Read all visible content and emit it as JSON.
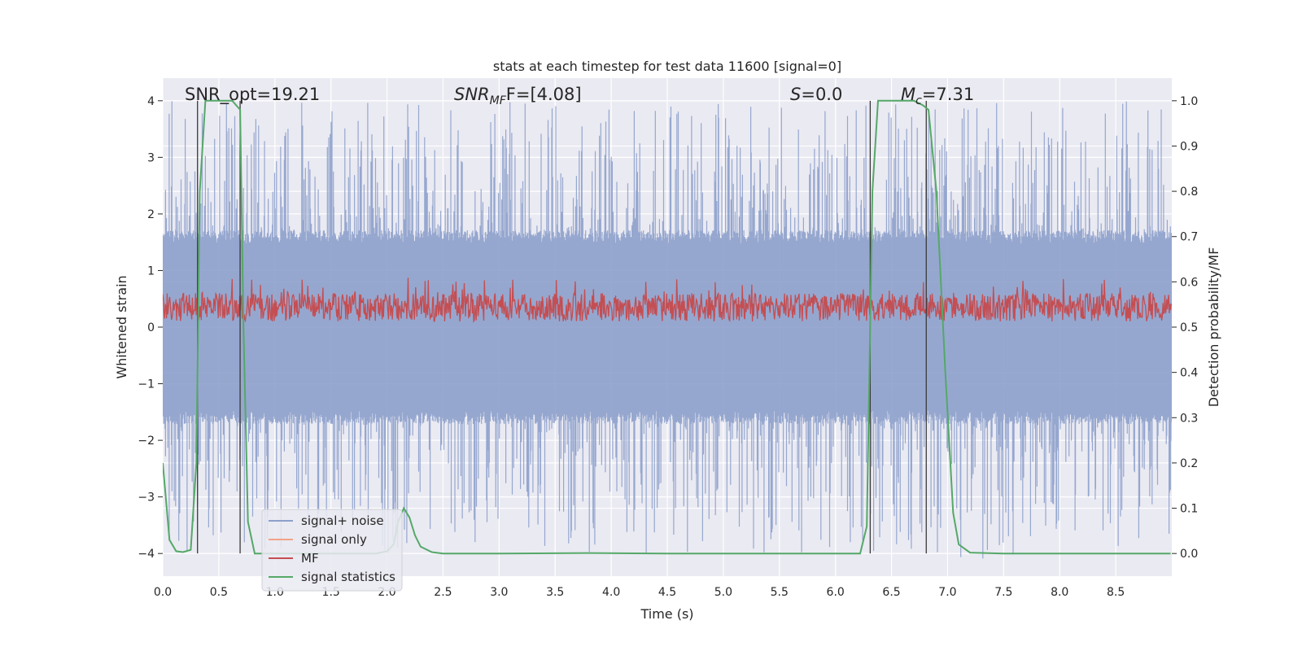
{
  "chart_data": {
    "type": "line",
    "title": "stats at each timestep for test data 11600 [signal=0]",
    "xlabel": "Time (s)",
    "ylabel": "Whitened strain",
    "ylabel_right": "Detection probability/MF",
    "xlim": [
      0,
      9.0
    ],
    "ylim": [
      -4.4,
      4.4
    ],
    "ylim_right": [
      -0.05,
      1.05
    ],
    "x_ticks": [
      0.0,
      0.5,
      1.0,
      1.5,
      2.0,
      2.5,
      3.0,
      3.5,
      4.0,
      4.5,
      5.0,
      5.5,
      6.0,
      6.5,
      7.0,
      7.5,
      8.0,
      8.5
    ],
    "x_tick_labels": [
      "0.0",
      "0.5",
      "1.0",
      "1.5",
      "2.0",
      "2.5",
      "3.0",
      "3.5",
      "4.0",
      "4.5",
      "5.0",
      "5.5",
      "6.0",
      "6.5",
      "7.0",
      "7.5",
      "8.0",
      "8.5"
    ],
    "y_ticks": [
      -4,
      -3,
      -2,
      -1,
      0,
      1,
      2,
      3,
      4
    ],
    "y_tick_labels": [
      "−4",
      "−3",
      "−2",
      "−1",
      "0",
      "1",
      "2",
      "3",
      "4"
    ],
    "y_ticks_right": [
      0.0,
      0.1,
      0.2,
      0.3,
      0.4,
      0.5,
      0.6,
      0.7,
      0.8,
      0.9,
      1.0
    ],
    "y_tick_labels_right": [
      "0.0",
      "0.1",
      "0.2",
      "0.3",
      "0.4",
      "0.5",
      "0.6",
      "0.7",
      "0.8",
      "0.9",
      "1.0"
    ],
    "annotations": {
      "snr_opt": "SNR_opt=19.21",
      "snr_mf_main": "SNR",
      "snr_mf_sub": "MF",
      "snr_mf_rest": "F=[4.08]",
      "s_main": "S",
      "s_rest": "=0.0",
      "mc_main": "M",
      "mc_sub": "c",
      "mc_rest": "=7.31"
    },
    "vertical_markers": [
      0.31,
      0.69,
      6.31,
      6.81
    ],
    "series": [
      {
        "name": "signal+ noise",
        "color": "#8da0cb",
        "kind": "noise",
        "typical_amplitude": 1.6,
        "peak_amplitude": 4.0
      },
      {
        "name": "signal only",
        "color": "#f2a487",
        "kind": "none"
      },
      {
        "name": "MF",
        "color": "#c44e52",
        "kind": "mf",
        "range": [
          0.0,
          1.0
        ],
        "typical_center": 0.35
      },
      {
        "name": "signal statistics",
        "color": "#55a868",
        "kind": "probability",
        "x": [
          0.0,
          0.06,
          0.12,
          0.18,
          0.25,
          0.3,
          0.33,
          0.38,
          0.5,
          0.62,
          0.69,
          0.72,
          0.76,
          0.82,
          1.0,
          1.5,
          1.9,
          2.0,
          2.06,
          2.1,
          2.15,
          2.2,
          2.25,
          2.3,
          2.4,
          2.5,
          3.0,
          3.8,
          4.5,
          5.5,
          6.22,
          6.28,
          6.33,
          6.38,
          6.5,
          6.7,
          6.78,
          6.83,
          6.9,
          6.98,
          7.05,
          7.1,
          7.2,
          7.5,
          8.0,
          8.5,
          8.99
        ],
        "values": [
          0.2,
          0.03,
          0.005,
          0.003,
          0.008,
          0.2,
          0.8,
          1.0,
          1.0,
          1.0,
          0.98,
          0.5,
          0.07,
          0.0,
          0.0,
          0.0,
          0.0,
          0.005,
          0.02,
          0.07,
          0.1,
          0.08,
          0.04,
          0.015,
          0.003,
          0.0,
          0.0,
          0.001,
          0.0,
          0.0,
          0.0,
          0.06,
          0.8,
          1.0,
          1.0,
          1.0,
          0.99,
          0.98,
          0.8,
          0.4,
          0.09,
          0.02,
          0.002,
          0.0,
          0.0,
          0.0,
          0.0
        ]
      }
    ],
    "legend": {
      "location": "lower-left",
      "entries": [
        "signal+ noise",
        "signal only",
        "MF",
        "signal statistics"
      ]
    }
  }
}
